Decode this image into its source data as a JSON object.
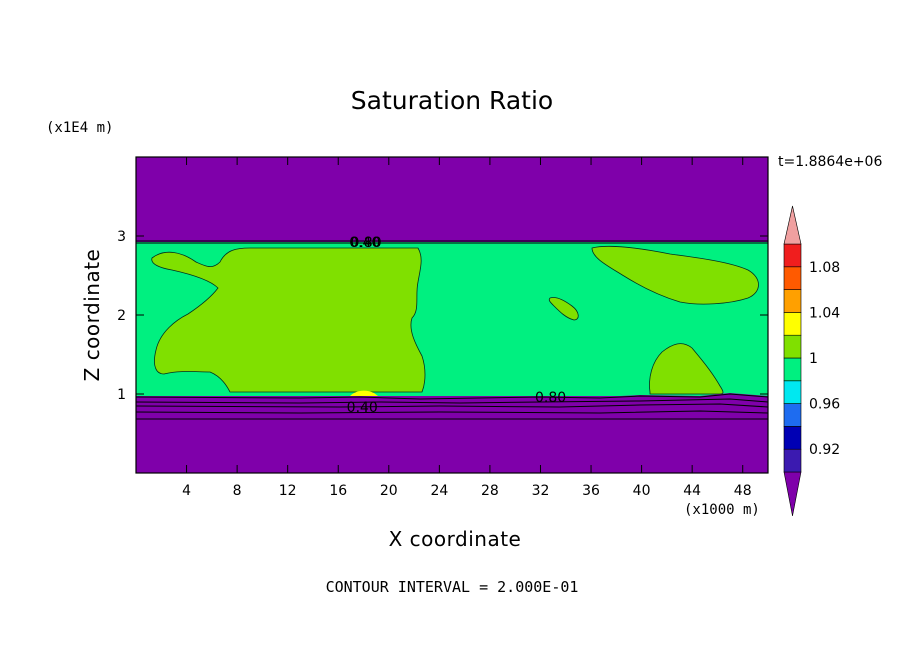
{
  "chart_data": {
    "type": "heatmap",
    "title": "Saturation Ratio",
    "xlabel": "X coordinate",
    "ylabel": "Z coordinate",
    "x_unit_label": "(x1000 m)",
    "y_unit_label": "(x1E4 m)",
    "time_label": "t=1.8864e+06",
    "contour_interval_label": "CONTOUR INTERVAL = 2.000E-01",
    "xlim": [
      0,
      50
    ],
    "ylim": [
      0,
      4
    ],
    "x_ticks": [
      "4",
      "8",
      "12",
      "16",
      "20",
      "24",
      "28",
      "32",
      "36",
      "40",
      "44",
      "48"
    ],
    "x_tick_values": [
      4,
      8,
      12,
      16,
      20,
      24,
      28,
      32,
      36,
      40,
      44,
      48
    ],
    "y_ticks": [
      "1",
      "2",
      "3"
    ],
    "y_tick_values": [
      1,
      2,
      3
    ],
    "colorbar": {
      "levels": [
        0.92,
        0.96,
        1,
        1.04,
        1.08
      ],
      "tick_labels": [
        "0.92",
        "0.96",
        "1",
        "1.04",
        "1.08"
      ],
      "colors": [
        "#7f00aa",
        "#3b1ab0",
        "#0000b4",
        "#1e6cf0",
        "#00e8f0",
        "#00f080",
        "#80e000",
        "#ffff00",
        "#ffa000",
        "#ff5a00",
        "#f01e1e",
        "#f0a0a0"
      ]
    },
    "regions": [
      {
        "name": "upper dry layer",
        "value": 0.9,
        "color": "#7f00aa"
      },
      {
        "name": "cloud layer background",
        "value": 0.98,
        "color": "#00f080"
      },
      {
        "name": "supersaturated patches",
        "value": 1.01,
        "color": "#80e000"
      },
      {
        "name": "lower dry layer",
        "value": 0.9,
        "color": "#7f00aa"
      }
    ],
    "contour_labels": [
      {
        "text": "0.80",
        "x": 18.2,
        "y": 2.92
      },
      {
        "text": "0.40",
        "x": 18.1,
        "y": 2.92
      },
      {
        "text": "0.80",
        "x": 32.8,
        "y": 0.95
      },
      {
        "text": "0.40",
        "x": 17.9,
        "y": 0.85
      }
    ]
  }
}
